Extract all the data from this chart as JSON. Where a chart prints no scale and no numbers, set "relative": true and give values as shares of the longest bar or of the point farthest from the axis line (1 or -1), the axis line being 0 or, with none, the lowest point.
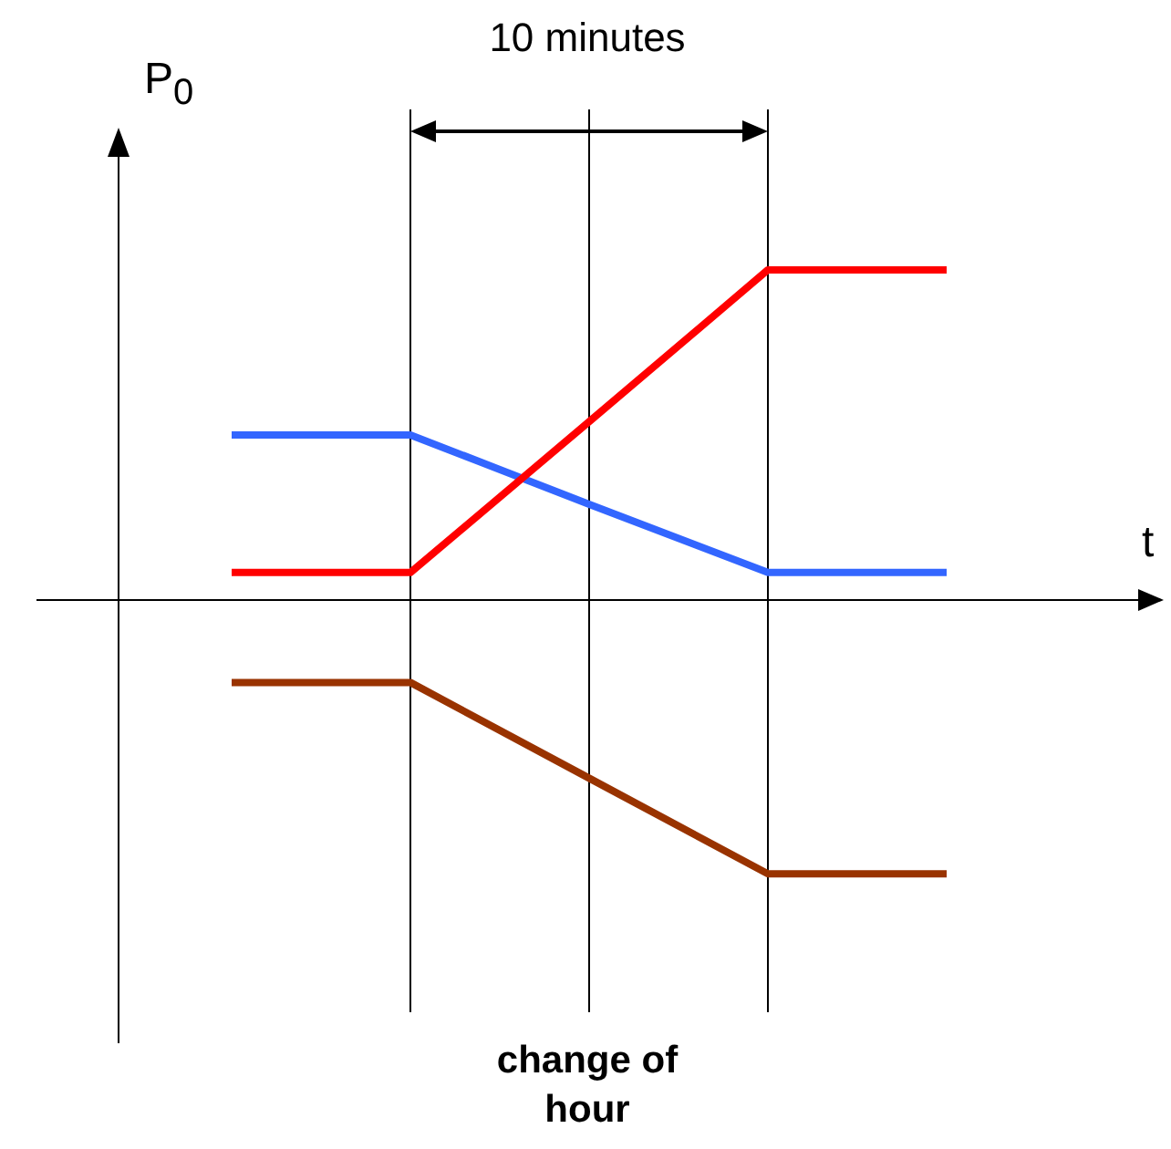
{
  "chart_data": {
    "type": "line",
    "relative": true,
    "xlabel": "t",
    "ylabel": "P$_{0}$",
    "categories": [
      null,
      null,
      null,
      null,
      null
    ],
    "series": [
      {
        "color": "#ff0000",
        "values": [
          0.083,
          0.083,
          0.54,
          1,
          1
        ]
      },
      {
        "color": "#3366ff",
        "values": [
          0.5,
          0.5,
          0.29,
          0.083,
          0.083
        ]
      },
      {
        "color": "#993300",
        "values": [
          -0.25,
          -0.25,
          -0.54,
          -0.83,
          -0.83
        ]
      }
    ],
    "annotations": [
      "10 minutes",
      "change of hour"
    ],
    "marker": "none",
    "line_style": "solid",
    "legend": false,
    "grid": "x"
  }
}
